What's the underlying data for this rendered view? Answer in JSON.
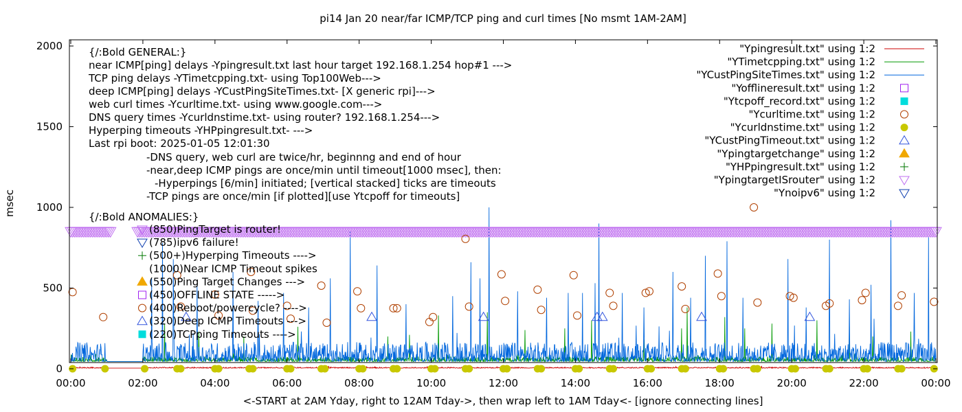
{
  "chart_data": {
    "type": "line",
    "title": "pi14 Jan 20  near/far ICMP/TCP ping and curl times [No msmt 1AM-2AM]",
    "xlabel": "<-START at 2AM Yday, right to 12AM Tday->, then wrap left to 1AM Tday<- [ignore connecting lines]",
    "ylabel": "msec",
    "xlim": [
      0,
      24
    ],
    "ylim": [
      0,
      2050
    ],
    "grid": false,
    "legend_position": "top-right",
    "x_ticks": [
      {
        "v": 0,
        "label": "00:00"
      },
      {
        "v": 2,
        "label": "02:00"
      },
      {
        "v": 4,
        "label": "04:00"
      },
      {
        "v": 6,
        "label": "06:00"
      },
      {
        "v": 8,
        "label": "08:00"
      },
      {
        "v": 10,
        "label": "10:00"
      },
      {
        "v": 12,
        "label": "12:00"
      },
      {
        "v": 14,
        "label": "14:00"
      },
      {
        "v": 16,
        "label": "16:00"
      },
      {
        "v": 18,
        "label": "18:00"
      },
      {
        "v": 20,
        "label": "20:00"
      },
      {
        "v": 22,
        "label": "22:00"
      },
      {
        "v": 24,
        "label": "00:00"
      }
    ],
    "y_ticks": [
      {
        "v": 0,
        "label": "0"
      },
      {
        "v": 500,
        "label": "500"
      },
      {
        "v": 1000,
        "label": "1000"
      },
      {
        "v": 1500,
        "label": "1500"
      },
      {
        "v": 2000,
        "label": "2000"
      }
    ],
    "legend": [
      {
        "label": "\"Ypingresult.txt\" using 1:2",
        "marker": "line",
        "color": "#cc0000"
      },
      {
        "label": "\"YTimetcpping.txt\" using 1:2",
        "marker": "line",
        "color": "#009900"
      },
      {
        "label": "\"YCustPingSiteTimes.txt\" using 1:2",
        "marker": "line",
        "color": "#0066dd"
      },
      {
        "label": "\"Yofflineresult.txt\" using 1:2",
        "marker": "square-open",
        "color": "#a020f0"
      },
      {
        "label": "\"Ytcpoff_record.txt\" using 1:2",
        "marker": "square-filled",
        "color": "#00dddd"
      },
      {
        "label": "\"Ycurltime.txt\" using 1:2",
        "marker": "circle-open",
        "color": "#b04000"
      },
      {
        "label": "\"Ycurldnstime.txt\" using 1:2",
        "marker": "circle-filled",
        "color": "#c8c800"
      },
      {
        "label": "\"YCustPingTimeout.txt\" using 1:2",
        "marker": "triangle-up-open",
        "color": "#3355dd"
      },
      {
        "label": "\"Ypingtargetchange\" using 1:2",
        "marker": "triangle-up-filled",
        "color": "#f0a800"
      },
      {
        "label": "\"YHPpingresult.txt\" using 1:2",
        "marker": "plus",
        "color": "#007700"
      },
      {
        "label": "\"YpingtargetISrouter\" using 1:2",
        "marker": "triangle-down-open",
        "color": "#c070f0"
      },
      {
        "label": "\"Ynoipv6\" using 1:2",
        "marker": "triangle-down-open",
        "color": "#1040b0"
      }
    ],
    "annotations": [
      "{/:Bold GENERAL:}",
      "near ICMP[ping] delays -Ypingresult.txt last hour target 192.168.1.254 hop#1 --->",
      "TCP ping delays -YTimetcpping.txt- using Top100Web--->",
      "deep ICMP[ping] delays -YCustPingSiteTimes.txt- [X generic rpi]--->",
      "web curl times -Ycurltime.txt- using www.google.com--->",
      "DNS query times -Ycurldnstime.txt- using router? 192.168.1.254--->",
      "Hyperping timeouts -YHPpingresult.txt- --->",
      "Last rpi boot: 2025-01-05 12:01:30",
      "-DNS query, web curl are twice/hr, beginnng and end of hour",
      "-near,deep ICMP pings are once/min until timeout[1000 msec], then:",
      "-Hyperpings [6/min] initiated; [vertical stacked] ticks are timeouts",
      "-TCP pings are once/min [if plotted][use Ytcpoff for timeouts]",
      "{/:Bold ANOMALIES:}"
    ],
    "anomaly_key": [
      {
        "label": "(850)PingTarget is router!",
        "marker": "triangle-down-open",
        "color": "#c070f0"
      },
      {
        "label": "(785)ipv6 failure!",
        "marker": "triangle-down-open",
        "color": "#1040b0"
      },
      {
        "label": "(500+)Hyperping Timeouts ---->",
        "marker": "plus",
        "color": "#007700"
      },
      {
        "label": "(1000)Near ICMP Timeout spikes",
        "marker": "none",
        "color": "#000000"
      },
      {
        "label": "(550)Ping Target Changes --->",
        "marker": "triangle-up-filled",
        "color": "#f0a800"
      },
      {
        "label": "(450)OFFLINE STATE ----->",
        "marker": "square-open",
        "color": "#a020f0"
      },
      {
        "label": "(400)Reboot/powercycle? ---->",
        "marker": "circle-open",
        "color": "#b04000"
      },
      {
        "label": "(320)Deep ICMP Timeouts --->",
        "marker": "triangle-up-open",
        "color": "#3355dd"
      },
      {
        "label": "(220)TCPping Timeouts ---->",
        "marker": "square-filled",
        "color": "#00dddd"
      }
    ],
    "series": [
      {
        "name": "\"YpingtargetISrouter\" using 1:2",
        "type": "marker-band",
        "marker": "triangle-down-open",
        "color": "#c070f0",
        "y": 850,
        "x_ranges": [
          [
            0.0,
            1.1
          ],
          [
            1.85,
            24.0
          ]
        ]
      },
      {
        "name": "\"Ycurldnstime.txt\" using 1:2",
        "type": "scatter",
        "marker": "circle-filled",
        "color": "#c8c800",
        "points": [
          [
            0.05,
            0
          ],
          [
            0.95,
            0
          ],
          [
            2.05,
            0
          ],
          [
            2.95,
            0
          ],
          [
            3.05,
            0
          ],
          [
            4.0,
            0
          ],
          [
            4.1,
            0
          ],
          [
            4.95,
            0
          ],
          [
            5.05,
            0
          ],
          [
            6.0,
            0
          ],
          [
            6.1,
            0
          ],
          [
            6.95,
            0
          ],
          [
            7.05,
            0
          ],
          [
            8.0,
            0
          ],
          [
            8.1,
            0
          ],
          [
            8.95,
            0
          ],
          [
            9.05,
            0
          ],
          [
            10.0,
            0
          ],
          [
            10.1,
            0
          ],
          [
            10.95,
            0
          ],
          [
            11.05,
            0
          ],
          [
            12.0,
            0
          ],
          [
            12.1,
            0
          ],
          [
            12.95,
            0
          ],
          [
            13.05,
            0
          ],
          [
            14.0,
            0
          ],
          [
            14.1,
            0
          ],
          [
            14.95,
            0
          ],
          [
            15.05,
            0
          ],
          [
            16.0,
            0
          ],
          [
            16.1,
            0
          ],
          [
            16.95,
            0
          ],
          [
            17.05,
            0
          ],
          [
            18.0,
            0
          ],
          [
            18.1,
            0
          ],
          [
            18.95,
            0
          ],
          [
            19.05,
            0
          ],
          [
            20.0,
            0
          ],
          [
            20.1,
            0
          ],
          [
            20.95,
            0
          ],
          [
            21.05,
            0
          ],
          [
            22.0,
            0
          ],
          [
            22.1,
            0
          ],
          [
            22.95,
            0
          ],
          [
            23.05,
            0
          ],
          [
            23.95,
            0
          ]
        ]
      },
      {
        "name": "\"Ycurltime.txt\" using 1:2",
        "type": "scatter",
        "marker": "circle-open",
        "color": "#b04000",
        "points": [
          [
            0.05,
            475
          ],
          [
            0.9,
            320
          ],
          [
            2.95,
            580
          ],
          [
            3.05,
            385
          ],
          [
            4.0,
            460
          ],
          [
            4.1,
            330
          ],
          [
            5.0,
            600
          ],
          [
            5.05,
            360
          ],
          [
            6.0,
            390
          ],
          [
            6.1,
            310
          ],
          [
            6.95,
            515
          ],
          [
            7.1,
            285
          ],
          [
            7.95,
            480
          ],
          [
            8.05,
            375
          ],
          [
            8.95,
            375
          ],
          [
            9.05,
            375
          ],
          [
            9.95,
            290
          ],
          [
            10.05,
            320
          ],
          [
            10.95,
            805
          ],
          [
            11.05,
            385
          ],
          [
            11.95,
            585
          ],
          [
            12.05,
            420
          ],
          [
            12.95,
            490
          ],
          [
            13.05,
            365
          ],
          [
            13.95,
            580
          ],
          [
            14.05,
            330
          ],
          [
            14.95,
            470
          ],
          [
            15.05,
            390
          ],
          [
            15.95,
            470
          ],
          [
            16.05,
            480
          ],
          [
            16.95,
            510
          ],
          [
            17.05,
            370
          ],
          [
            17.95,
            590
          ],
          [
            18.05,
            450
          ],
          [
            18.95,
            1000
          ],
          [
            19.05,
            410
          ],
          [
            19.95,
            450
          ],
          [
            20.05,
            440
          ],
          [
            20.95,
            390
          ],
          [
            21.05,
            405
          ],
          [
            21.95,
            425
          ],
          [
            22.05,
            470
          ],
          [
            22.95,
            390
          ],
          [
            23.05,
            455
          ],
          [
            23.95,
            415
          ]
        ]
      },
      {
        "name": "\"YCustPingTimeout.txt\" using 1:2",
        "type": "scatter",
        "marker": "triangle-up-open",
        "color": "#3355dd",
        "points": [
          [
            3.2,
            320
          ],
          [
            8.35,
            320
          ],
          [
            11.45,
            320
          ],
          [
            14.6,
            320
          ],
          [
            14.75,
            320
          ],
          [
            17.5,
            320
          ],
          [
            20.5,
            320
          ]
        ]
      },
      {
        "name": "\"YTimetcpping.txt\" using 1:2",
        "type": "line",
        "color": "#009900",
        "baseline": 45,
        "noise": 15,
        "gap": [
          1.0,
          2.0
        ],
        "spikes": [
          [
            2.6,
            280
          ],
          [
            3.55,
            230
          ],
          [
            4.8,
            200
          ],
          [
            6.3,
            260
          ],
          [
            8.8,
            200
          ],
          [
            9.4,
            210
          ],
          [
            10.2,
            330
          ],
          [
            11.55,
            350
          ],
          [
            12.6,
            240
          ],
          [
            13.7,
            250
          ],
          [
            14.45,
            300
          ],
          [
            15.9,
            180
          ],
          [
            16.95,
            250
          ],
          [
            17.1,
            380
          ],
          [
            18.15,
            320
          ],
          [
            18.7,
            250
          ],
          [
            19.45,
            280
          ],
          [
            20.7,
            300
          ],
          [
            21.6,
            260
          ],
          [
            22.25,
            200
          ],
          [
            23.3,
            230
          ]
        ]
      },
      {
        "name": "\"YCustPingSiteTimes.txt\" using 1:2",
        "type": "line",
        "color": "#0066dd",
        "baseline": 45,
        "noise": 60,
        "gap": [
          1.0,
          2.0
        ],
        "spikes": [
          [
            2.25,
            560
          ],
          [
            2.55,
            780
          ],
          [
            2.85,
            680
          ],
          [
            3.5,
            520
          ],
          [
            4.5,
            600
          ],
          [
            5.2,
            420
          ],
          [
            5.9,
            470
          ],
          [
            6.6,
            380
          ],
          [
            7.2,
            560
          ],
          [
            7.75,
            850
          ],
          [
            8.5,
            640
          ],
          [
            9.3,
            400
          ],
          [
            10.6,
            450
          ],
          [
            11.1,
            660
          ],
          [
            11.35,
            560
          ],
          [
            11.6,
            1000
          ],
          [
            12.4,
            480
          ],
          [
            13.2,
            440
          ],
          [
            13.8,
            470
          ],
          [
            14.2,
            470
          ],
          [
            14.55,
            530
          ],
          [
            14.65,
            900
          ],
          [
            15.3,
            470
          ],
          [
            15.9,
            380
          ],
          [
            16.7,
            600
          ],
          [
            17.2,
            440
          ],
          [
            17.6,
            700
          ],
          [
            18.2,
            790
          ],
          [
            18.65,
            440
          ],
          [
            19.9,
            680
          ],
          [
            20.4,
            380
          ],
          [
            21.05,
            800
          ],
          [
            21.6,
            430
          ],
          [
            22.2,
            520
          ],
          [
            22.75,
            920
          ],
          [
            23.4,
            470
          ],
          [
            23.8,
            820
          ]
        ]
      },
      {
        "name": "\"Ypingresult.txt\" using 1:2",
        "type": "line",
        "color": "#cc0000",
        "baseline": 4,
        "noise": 3,
        "gap": [
          1.0,
          2.0
        ],
        "spikes": []
      }
    ]
  }
}
